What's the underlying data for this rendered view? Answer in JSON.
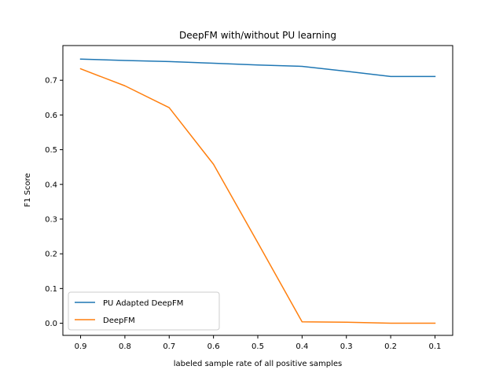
{
  "chart_data": {
    "type": "line",
    "title": "DeepFM with/without PU learning",
    "xlabel": "labeled sample rate of all positive samples",
    "ylabel": "F1 Score",
    "x": [
      0.9,
      0.8,
      0.7,
      0.6,
      0.5,
      0.4,
      0.3,
      0.2,
      0.1
    ],
    "x_tick_labels": [
      "0.9",
      "0.8",
      "0.7",
      "0.6",
      "0.5",
      "0.4",
      "0.3",
      "0.2",
      "0.1"
    ],
    "x_reversed": true,
    "xlim": [
      0.94,
      0.06
    ],
    "ylim": [
      -0.035,
      0.8
    ],
    "y_ticks": [
      0.0,
      0.1,
      0.2,
      0.3,
      0.4,
      0.5,
      0.6,
      0.7
    ],
    "y_tick_labels": [
      "0.0",
      "0.1",
      "0.2",
      "0.3",
      "0.4",
      "0.5",
      "0.6",
      "0.7"
    ],
    "grid": false,
    "legend_position": "lower-left",
    "series": [
      {
        "name": "PU Adapted DeepFM",
        "color": "#1f77b4",
        "values": [
          0.761,
          0.757,
          0.754,
          0.749,
          0.744,
          0.74,
          0.726,
          0.711,
          0.711
        ]
      },
      {
        "name": "DeepFM",
        "color": "#ff7f0e",
        "values": [
          0.733,
          0.684,
          0.621,
          0.458,
          0.232,
          0.004,
          0.003,
          0.0,
          0.0
        ]
      }
    ]
  }
}
